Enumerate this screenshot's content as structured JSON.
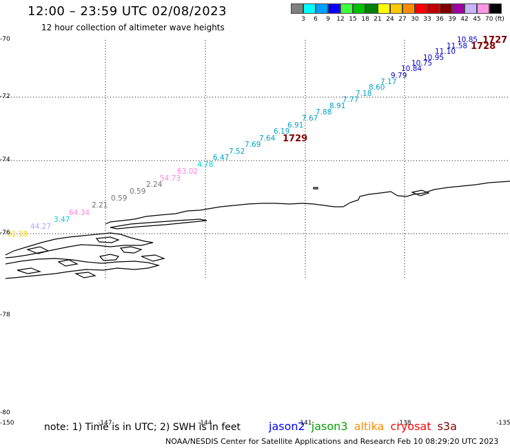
{
  "header": {
    "title": "12:00 – 23:59 UTC 02/08/2023",
    "subtitle": "12 hour collection of altimeter wave heights"
  },
  "legend": {
    "unit": "70 (ft)",
    "bins": [
      {
        "label": "3",
        "color": "#808080"
      },
      {
        "label": "6",
        "color": "#00ffff"
      },
      {
        "label": "9",
        "color": "#00a0ff"
      },
      {
        "label": "12",
        "color": "#0000ff"
      },
      {
        "label": "15",
        "color": "#40ff40"
      },
      {
        "label": "18",
        "color": "#00c000"
      },
      {
        "label": "21",
        "color": "#008000"
      },
      {
        "label": "24",
        "color": "#ffff00"
      },
      {
        "label": "27",
        "color": "#ffc800"
      },
      {
        "label": "30",
        "color": "#ff8c00"
      },
      {
        "label": "33",
        "color": "#ff0000"
      },
      {
        "label": "36",
        "color": "#c00000"
      },
      {
        "label": "39",
        "color": "#800000"
      },
      {
        "label": "42",
        "color": "#a000a0"
      },
      {
        "label": "45",
        "color": "#c8b4ff"
      },
      {
        "label": "",
        "color": "#ff96e6"
      },
      {
        "label": "",
        "color": "#000000"
      }
    ]
  },
  "axes": {
    "lat_labels": [
      "-70",
      "-72",
      "-74",
      "-76",
      "-78",
      "-80"
    ],
    "lon_labels": [
      "-150",
      "-147",
      "-144",
      "-141",
      "-138",
      "-135"
    ]
  },
  "track": [
    {
      "text": "10.85",
      "color": "#0000c8"
    },
    {
      "text": "11.58",
      "color": "#0000c8"
    },
    {
      "text": "11.10",
      "color": "#0000c8"
    },
    {
      "text": "10.95",
      "color": "#0000c8"
    },
    {
      "text": "10.75",
      "color": "#0000c8"
    },
    {
      "text": "10.84",
      "color": "#0000c8"
    },
    {
      "text": "9.79",
      "color": "#0000c8"
    },
    {
      "text": "7.17",
      "color": "#00a0c8"
    },
    {
      "text": "8.60",
      "color": "#00a0c8"
    },
    {
      "text": "7.18",
      "color": "#00a0c8"
    },
    {
      "text": "7.77",
      "color": "#00a0c8"
    },
    {
      "text": "8.91",
      "color": "#00a0c8"
    },
    {
      "text": "7.88",
      "color": "#00a0c8"
    },
    {
      "text": "7.67",
      "color": "#00a0c8"
    },
    {
      "text": "6.91",
      "color": "#00a0c8"
    },
    {
      "text": "6.19",
      "color": "#00a0c8"
    },
    {
      "text": "7.64",
      "color": "#00a0c8"
    },
    {
      "text": "7.69",
      "color": "#00a0c8"
    },
    {
      "text": "7.52",
      "color": "#00a0c8"
    },
    {
      "text": "6.47",
      "color": "#00a0c8"
    },
    {
      "text": "4.78",
      "color": "#00d0d0"
    },
    {
      "text": "63.02",
      "color": "#ff80e0"
    },
    {
      "text": "54.73",
      "color": "#ff80e0"
    },
    {
      "text": "2.24",
      "color": "#707070"
    },
    {
      "text": "0.59",
      "color": "#707070"
    },
    {
      "text": "0.59",
      "color": "#707070"
    },
    {
      "text": "2.21",
      "color": "#707070"
    },
    {
      "text": "64.34",
      "color": "#ff80e0"
    },
    {
      "text": "3.47",
      "color": "#00d0d0"
    },
    {
      "text": "44.27",
      "color": "#b0a0ff"
    },
    {
      "text": "31.18",
      "color": "#ffd000"
    }
  ],
  "pass_labels": [
    {
      "text": "1727",
      "color": "#800000"
    },
    {
      "text": "1728",
      "color": "#800000"
    },
    {
      "text": "1729",
      "color": "#800000"
    }
  ],
  "footer": {
    "note": "note: 1) Time is in UTC; 2) SWH is in feet",
    "credit": "NOAA/NESDIS Center for Satellite Applications and Research   Feb 10 08:29:20 UTC 2023",
    "satellites": [
      {
        "name": "jason2",
        "color": "#0000ff"
      },
      {
        "name": "jason3",
        "color": "#00a000"
      },
      {
        "name": "altika",
        "color": "#ff8c00"
      },
      {
        "name": "cryosat",
        "color": "#ff0000"
      },
      {
        "name": "s3a",
        "color": "#800000"
      }
    ]
  }
}
